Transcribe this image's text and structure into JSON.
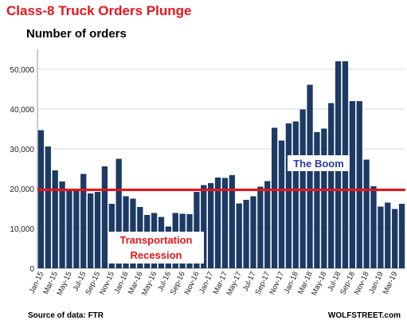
{
  "header": {
    "title": "Class-8 Truck Orders Plunge",
    "subtitle": "Number of orders"
  },
  "footer": {
    "source": "Source of data: FTR",
    "brand": "WOLFSTREET.com"
  },
  "colors": {
    "bar": "#1c3a63",
    "reference_line": "#e8141c",
    "title": "#e8141c",
    "boom_label": "#2b3aa8",
    "recession_label": "#e8141c"
  },
  "chart_data": {
    "type": "bar",
    "title": "Class-8 Truck Orders Plunge",
    "ylabel": "Number of orders",
    "xlabel": "",
    "ylim": [
      0,
      55000
    ],
    "yticks": [
      0,
      10000,
      20000,
      30000,
      40000,
      50000
    ],
    "ytick_labels": [
      "0",
      "10,000",
      "20,000",
      "30,000",
      "40,000",
      "50,000"
    ],
    "grid": true,
    "categories": [
      "Jan-15",
      "Feb-15",
      "Mar-15",
      "Apr-15",
      "May-15",
      "Jun-15",
      "Jul-15",
      "Aug-15",
      "Sep-15",
      "Oct-15",
      "Nov-15",
      "Dec-15",
      "Jan-16",
      "Feb-16",
      "Mar-16",
      "Apr-16",
      "May-16",
      "Jun-16",
      "Jul-16",
      "Aug-16",
      "Sep-16",
      "Oct-16",
      "Nov-16",
      "Dec-16",
      "Jan-17",
      "Feb-17",
      "Mar-17",
      "Apr-17",
      "May-17",
      "Jun-17",
      "Jul-17",
      "Aug-17",
      "Sep-17",
      "Oct-17",
      "Nov-17",
      "Dec-17",
      "Jan-18",
      "Feb-18",
      "Mar-18",
      "Apr-18",
      "May-18",
      "Jun-18",
      "Jul-18",
      "Aug-18",
      "Sep-18",
      "Oct-18",
      "Nov-18",
      "Dec-18",
      "Jan-19",
      "Feb-19",
      "Mar-19",
      "Apr-19"
    ],
    "xtick_labels": [
      "Jan-15",
      "Mar-15",
      "May-15",
      "Jul-15",
      "Sep-15",
      "Nov-15",
      "Jan-16",
      "Mar-16",
      "May-16",
      "Jul-16",
      "Sep-16",
      "Nov-16",
      "Jan-17",
      "Mar-17",
      "May-17",
      "Jul-17",
      "Sep-17",
      "Nov-17",
      "Jan-18",
      "Mar-18",
      "May-18",
      "Jul-18",
      "Sep-18",
      "Nov-18",
      "Jan-19",
      "Mar-19"
    ],
    "values": [
      34700,
      30600,
      24600,
      21800,
      20000,
      19800,
      23700,
      18800,
      19200,
      25600,
      16200,
      27500,
      18100,
      17500,
      15400,
      13400,
      13900,
      12900,
      10500,
      13900,
      13700,
      13600,
      19200,
      20900,
      21400,
      22800,
      22700,
      23400,
      16300,
      17200,
      18100,
      20500,
      21900,
      35300,
      32100,
      36400,
      36900,
      39900,
      46100,
      34200,
      35100,
      41500,
      52000,
      52000,
      42000,
      42000,
      27300,
      20600,
      15500,
      16500,
      14900,
      16200
    ],
    "reference_line": {
      "value": 19700
    },
    "annotations": [
      {
        "text": "The Boom"
      },
      {
        "text": "Transportation Recession"
      }
    ]
  }
}
